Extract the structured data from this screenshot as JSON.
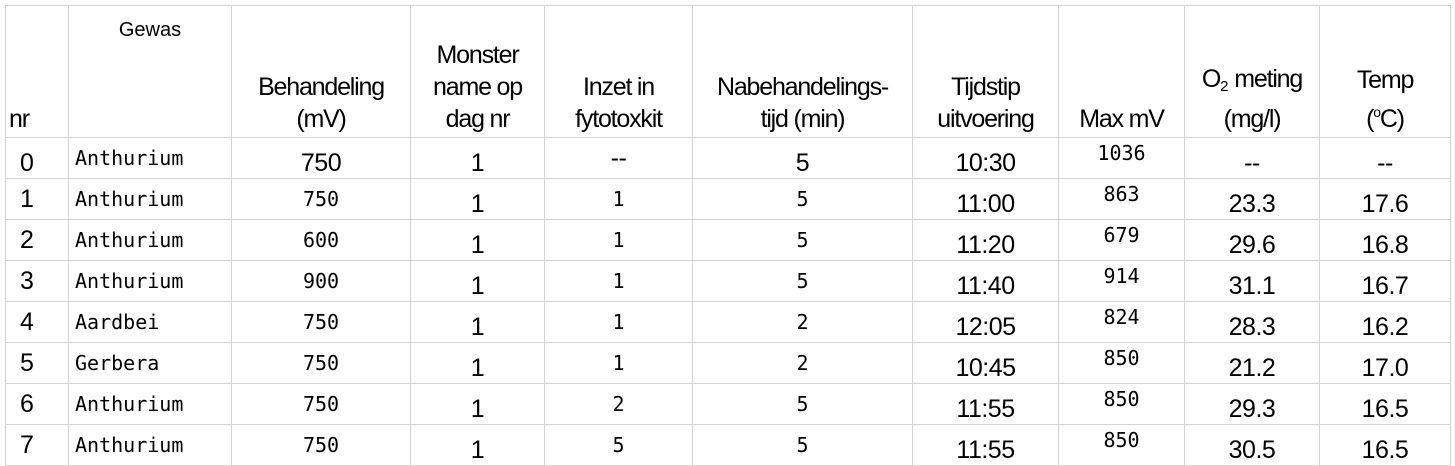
{
  "headers": {
    "nr": "nr",
    "gewas": "Gewas",
    "behandeling_l1": "Behandeling",
    "behandeling_l2": "(mV)",
    "monster_l1": "Monster",
    "monster_l2": "name op",
    "monster_l3": "dag nr",
    "inzet_l1": "Inzet in",
    "inzet_l2": "fytotoxkit",
    "nabeh_l1": "Nabehandelings-",
    "nabeh_l2": "tijd (min)",
    "tijdstip_l1": "Tijdstip",
    "tijdstip_l2": "uitvoering",
    "maxmv": "Max mV",
    "o2_O": "O",
    "o2_sub": "2",
    "o2_rest": " meting",
    "o2_l2": "(mg/l)",
    "temp_l1": "Temp",
    "temp_open": "(",
    "temp_sup": "o",
    "temp_close": "C)"
  },
  "rows": [
    {
      "nr": "0",
      "gewas": "Anthurium",
      "behandeling": "750",
      "dag": "1",
      "inzet": "--",
      "tijd": "5",
      "tijdstip": "10:30",
      "maxmv": "1036",
      "o2": "--",
      "temp": "--"
    },
    {
      "nr": "1",
      "gewas": "Anthurium",
      "behandeling": "750",
      "dag": "1",
      "inzet": "1",
      "tijd": "5",
      "tijdstip": "11:00",
      "maxmv": "863",
      "o2": "23.3",
      "temp": "17.6"
    },
    {
      "nr": "2",
      "gewas": "Anthurium",
      "behandeling": "600",
      "dag": "1",
      "inzet": "1",
      "tijd": "5",
      "tijdstip": "11:20",
      "maxmv": "679",
      "o2": "29.6",
      "temp": "16.8"
    },
    {
      "nr": "3",
      "gewas": "Anthurium",
      "behandeling": "900",
      "dag": "1",
      "inzet": "1",
      "tijd": "5",
      "tijdstip": "11:40",
      "maxmv": "914",
      "o2": "31.1",
      "temp": "16.7"
    },
    {
      "nr": "4",
      "gewas": "Aardbei",
      "behandeling": "750",
      "dag": "1",
      "inzet": "1",
      "tijd": "2",
      "tijdstip": "12:05",
      "maxmv": "824",
      "o2": "28.3",
      "temp": "16.2"
    },
    {
      "nr": "5",
      "gewas": "Gerbera",
      "behandeling": "750",
      "dag": "1",
      "inzet": "1",
      "tijd": "2",
      "tijdstip": "10:45",
      "maxmv": "850",
      "o2": "21.2",
      "temp": "17.0"
    },
    {
      "nr": "6",
      "gewas": "Anthurium",
      "behandeling": "750",
      "dag": "1",
      "inzet": "2",
      "tijd": "5",
      "tijdstip": "11:55",
      "maxmv": "850",
      "o2": "29.3",
      "temp": "16.5"
    },
    {
      "nr": "7",
      "gewas": "Anthurium",
      "behandeling": "750",
      "dag": "1",
      "inzet": "5",
      "tijd": "5",
      "tijdstip": "11:55",
      "maxmv": "850",
      "o2": "30.5",
      "temp": "16.5"
    }
  ]
}
